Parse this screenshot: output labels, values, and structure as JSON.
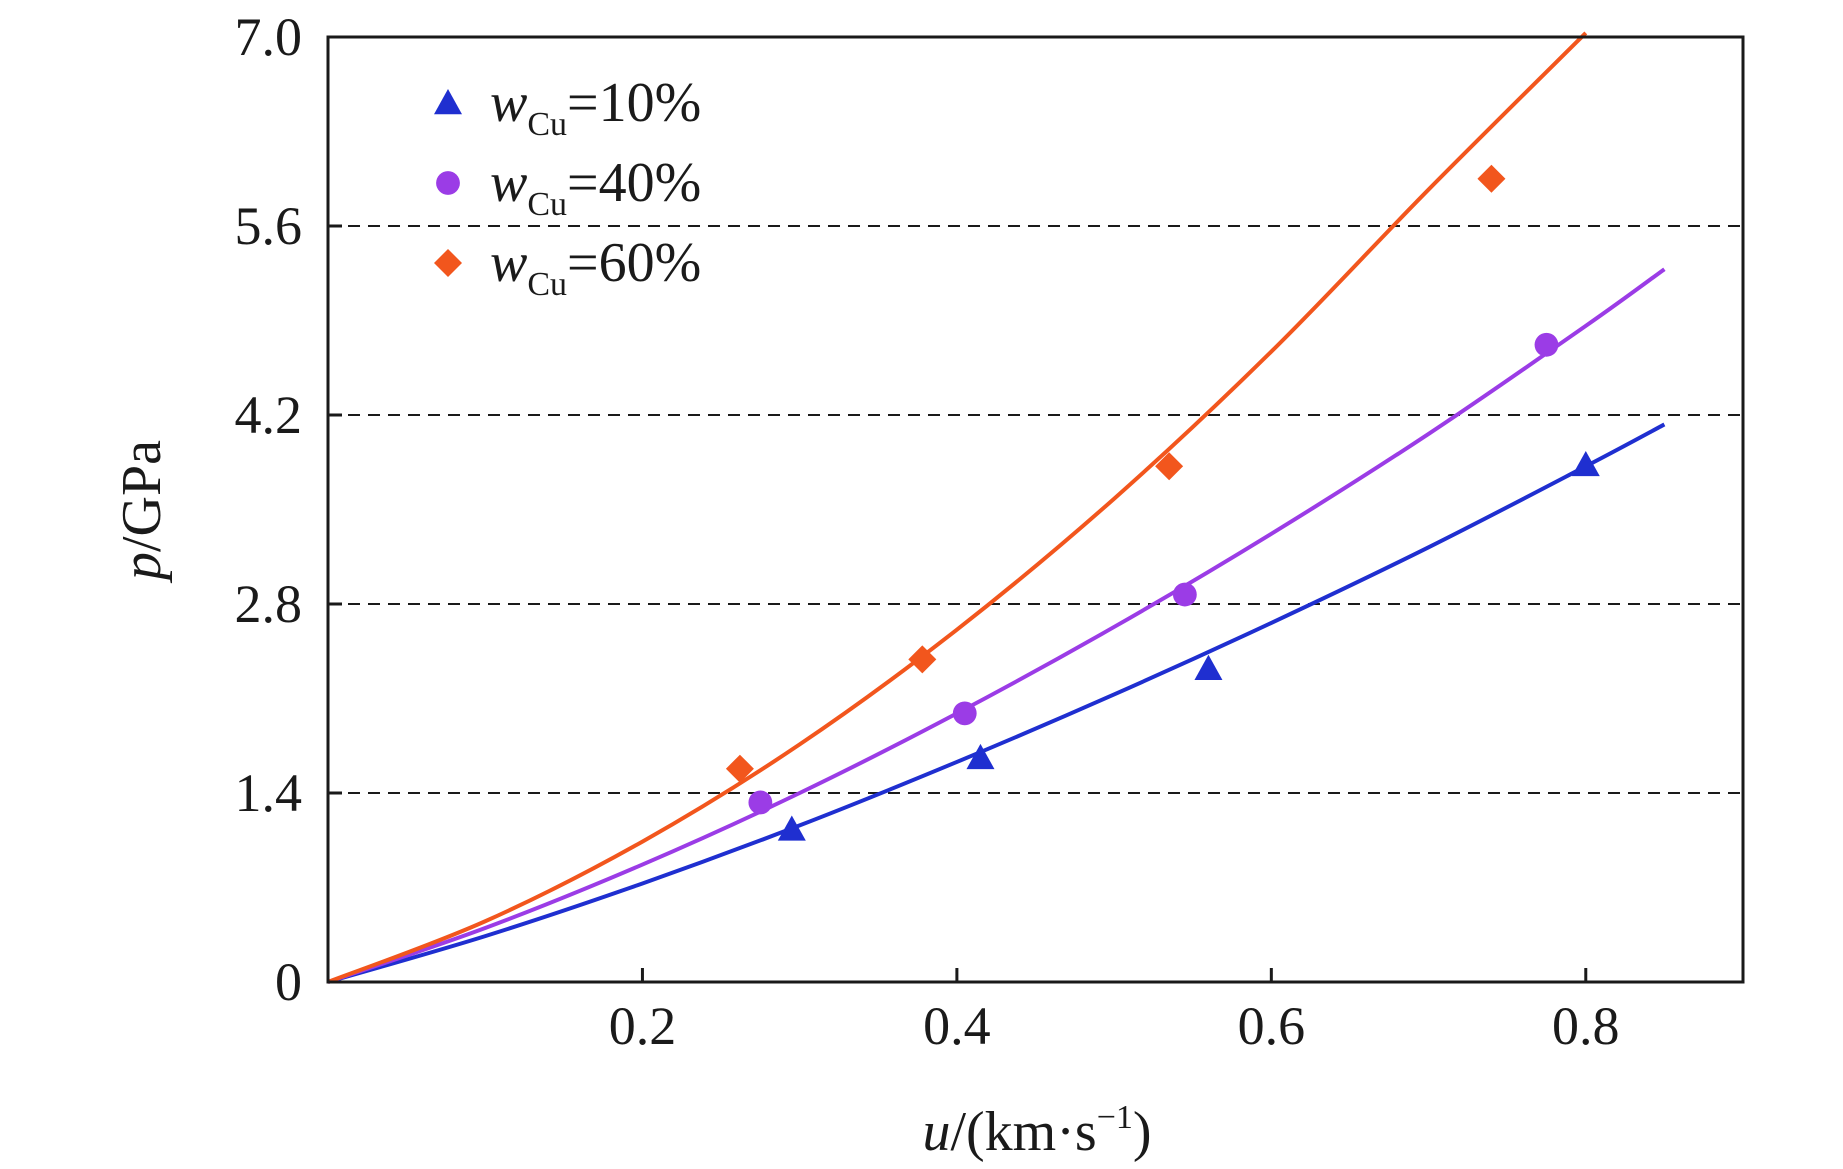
{
  "chart_data": {
    "type": "scatter",
    "xlabel": {
      "var": "u",
      "unit_prefix": "/(km·s",
      "unit_exp": "−1",
      "unit_suffix": ")"
    },
    "ylabel": {
      "var": "p",
      "unit": "/GPa"
    },
    "xlim": [
      0,
      0.9
    ],
    "ylim": [
      0,
      7.0
    ],
    "x_ticks": [
      0.2,
      0.4,
      0.6,
      0.8
    ],
    "x_tick_labels": [
      "0.2",
      "0.4",
      "0.6",
      "0.8"
    ],
    "y_ticks": [
      0,
      1.4,
      2.8,
      4.2,
      5.6,
      7.0
    ],
    "y_tick_labels": [
      "0",
      "1.4",
      "2.8",
      "4.2",
      "5.6",
      "7.0"
    ],
    "y_dashed_gridlines": [
      1.4,
      2.8,
      4.2,
      5.6
    ],
    "legend_position": "top-left",
    "series": [
      {
        "name": "10%",
        "legend_var": "w",
        "legend_sub": "Cu",
        "legend_value": "=10%",
        "marker": "triangle",
        "color": "#1f2fd0",
        "points": [
          [
            0.295,
            1.13
          ],
          [
            0.415,
            1.66
          ],
          [
            0.56,
            2.32
          ],
          [
            0.8,
            3.83
          ]
        ],
        "fit": [
          [
            0,
            0
          ],
          [
            0.1,
            0.34
          ],
          [
            0.2,
            0.73
          ],
          [
            0.3,
            1.16
          ],
          [
            0.4,
            1.63
          ],
          [
            0.5,
            2.13
          ],
          [
            0.6,
            2.66
          ],
          [
            0.7,
            3.22
          ],
          [
            0.8,
            3.82
          ],
          [
            0.85,
            4.13
          ]
        ]
      },
      {
        "name": "40%",
        "legend_var": "w",
        "legend_sub": "Cu",
        "legend_value": "=40%",
        "marker": "circle",
        "color": "#9b3ce6",
        "points": [
          [
            0.275,
            1.33
          ],
          [
            0.405,
            1.99
          ],
          [
            0.545,
            2.87
          ],
          [
            0.775,
            4.72
          ]
        ],
        "fit": [
          [
            0,
            0
          ],
          [
            0.1,
            0.4
          ],
          [
            0.2,
            0.87
          ],
          [
            0.3,
            1.4
          ],
          [
            0.4,
            1.99
          ],
          [
            0.5,
            2.63
          ],
          [
            0.6,
            3.32
          ],
          [
            0.7,
            4.06
          ],
          [
            0.8,
            4.86
          ],
          [
            0.85,
            5.28
          ]
        ]
      },
      {
        "name": "60%",
        "legend_var": "w",
        "legend_sub": "Cu",
        "legend_value": "=60%",
        "marker": "diamond",
        "color": "#f2561d",
        "points": [
          [
            0.262,
            1.58
          ],
          [
            0.378,
            2.39
          ],
          [
            0.535,
            3.82
          ],
          [
            0.74,
            5.95
          ]
        ],
        "fit": [
          [
            0,
            0
          ],
          [
            0.1,
            0.45
          ],
          [
            0.2,
            1.04
          ],
          [
            0.3,
            1.76
          ],
          [
            0.4,
            2.61
          ],
          [
            0.5,
            3.58
          ],
          [
            0.6,
            4.67
          ],
          [
            0.7,
            5.87
          ],
          [
            0.8,
            7.03
          ]
        ]
      }
    ]
  }
}
